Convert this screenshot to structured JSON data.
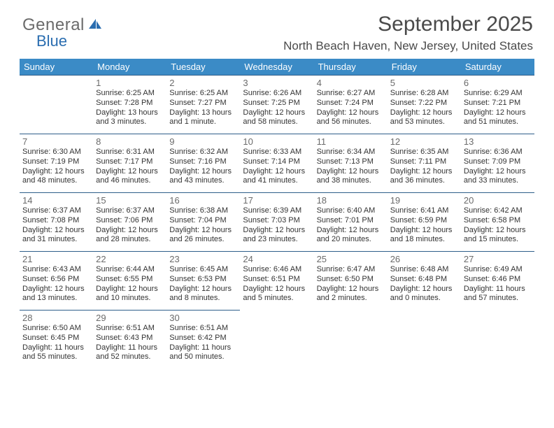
{
  "logo": {
    "text1": "General",
    "text2": "Blue"
  },
  "title": "September 2025",
  "subtitle": "North Beach Haven, New Jersey, United States",
  "colors": {
    "header_bg": "#3b8bc6",
    "header_text": "#ffffff",
    "row_border": "#2e5e8a",
    "logo_gray": "#6b6b6b",
    "logo_blue": "#2a6db0",
    "title_color": "#4a4a4a",
    "text_color": "#333333",
    "daynum_color": "#6b6b6b",
    "background": "#ffffff"
  },
  "fonts": {
    "title_size_pt": 22,
    "subtitle_size_pt": 13,
    "header_size_pt": 10,
    "cell_size_pt": 8.5,
    "daynum_size_pt": 10,
    "logo_size_pt": 18
  },
  "day_headers": [
    "Sunday",
    "Monday",
    "Tuesday",
    "Wednesday",
    "Thursday",
    "Friday",
    "Saturday"
  ],
  "weeks": [
    [
      {
        "day": "",
        "lines": []
      },
      {
        "day": "1",
        "lines": [
          "Sunrise: 6:25 AM",
          "Sunset: 7:28 PM",
          "Daylight: 13 hours and 3 minutes."
        ]
      },
      {
        "day": "2",
        "lines": [
          "Sunrise: 6:25 AM",
          "Sunset: 7:27 PM",
          "Daylight: 13 hours and 1 minute."
        ]
      },
      {
        "day": "3",
        "lines": [
          "Sunrise: 6:26 AM",
          "Sunset: 7:25 PM",
          "Daylight: 12 hours and 58 minutes."
        ]
      },
      {
        "day": "4",
        "lines": [
          "Sunrise: 6:27 AM",
          "Sunset: 7:24 PM",
          "Daylight: 12 hours and 56 minutes."
        ]
      },
      {
        "day": "5",
        "lines": [
          "Sunrise: 6:28 AM",
          "Sunset: 7:22 PM",
          "Daylight: 12 hours and 53 minutes."
        ]
      },
      {
        "day": "6",
        "lines": [
          "Sunrise: 6:29 AM",
          "Sunset: 7:21 PM",
          "Daylight: 12 hours and 51 minutes."
        ]
      }
    ],
    [
      {
        "day": "7",
        "lines": [
          "Sunrise: 6:30 AM",
          "Sunset: 7:19 PM",
          "Daylight: 12 hours and 48 minutes."
        ]
      },
      {
        "day": "8",
        "lines": [
          "Sunrise: 6:31 AM",
          "Sunset: 7:17 PM",
          "Daylight: 12 hours and 46 minutes."
        ]
      },
      {
        "day": "9",
        "lines": [
          "Sunrise: 6:32 AM",
          "Sunset: 7:16 PM",
          "Daylight: 12 hours and 43 minutes."
        ]
      },
      {
        "day": "10",
        "lines": [
          "Sunrise: 6:33 AM",
          "Sunset: 7:14 PM",
          "Daylight: 12 hours and 41 minutes."
        ]
      },
      {
        "day": "11",
        "lines": [
          "Sunrise: 6:34 AM",
          "Sunset: 7:13 PM",
          "Daylight: 12 hours and 38 minutes."
        ]
      },
      {
        "day": "12",
        "lines": [
          "Sunrise: 6:35 AM",
          "Sunset: 7:11 PM",
          "Daylight: 12 hours and 36 minutes."
        ]
      },
      {
        "day": "13",
        "lines": [
          "Sunrise: 6:36 AM",
          "Sunset: 7:09 PM",
          "Daylight: 12 hours and 33 minutes."
        ]
      }
    ],
    [
      {
        "day": "14",
        "lines": [
          "Sunrise: 6:37 AM",
          "Sunset: 7:08 PM",
          "Daylight: 12 hours and 31 minutes."
        ]
      },
      {
        "day": "15",
        "lines": [
          "Sunrise: 6:37 AM",
          "Sunset: 7:06 PM",
          "Daylight: 12 hours and 28 minutes."
        ]
      },
      {
        "day": "16",
        "lines": [
          "Sunrise: 6:38 AM",
          "Sunset: 7:04 PM",
          "Daylight: 12 hours and 26 minutes."
        ]
      },
      {
        "day": "17",
        "lines": [
          "Sunrise: 6:39 AM",
          "Sunset: 7:03 PM",
          "Daylight: 12 hours and 23 minutes."
        ]
      },
      {
        "day": "18",
        "lines": [
          "Sunrise: 6:40 AM",
          "Sunset: 7:01 PM",
          "Daylight: 12 hours and 20 minutes."
        ]
      },
      {
        "day": "19",
        "lines": [
          "Sunrise: 6:41 AM",
          "Sunset: 6:59 PM",
          "Daylight: 12 hours and 18 minutes."
        ]
      },
      {
        "day": "20",
        "lines": [
          "Sunrise: 6:42 AM",
          "Sunset: 6:58 PM",
          "Daylight: 12 hours and 15 minutes."
        ]
      }
    ],
    [
      {
        "day": "21",
        "lines": [
          "Sunrise: 6:43 AM",
          "Sunset: 6:56 PM",
          "Daylight: 12 hours and 13 minutes."
        ]
      },
      {
        "day": "22",
        "lines": [
          "Sunrise: 6:44 AM",
          "Sunset: 6:55 PM",
          "Daylight: 12 hours and 10 minutes."
        ]
      },
      {
        "day": "23",
        "lines": [
          "Sunrise: 6:45 AM",
          "Sunset: 6:53 PM",
          "Daylight: 12 hours and 8 minutes."
        ]
      },
      {
        "day": "24",
        "lines": [
          "Sunrise: 6:46 AM",
          "Sunset: 6:51 PM",
          "Daylight: 12 hours and 5 minutes."
        ]
      },
      {
        "day": "25",
        "lines": [
          "Sunrise: 6:47 AM",
          "Sunset: 6:50 PM",
          "Daylight: 12 hours and 2 minutes."
        ]
      },
      {
        "day": "26",
        "lines": [
          "Sunrise: 6:48 AM",
          "Sunset: 6:48 PM",
          "Daylight: 12 hours and 0 minutes."
        ]
      },
      {
        "day": "27",
        "lines": [
          "Sunrise: 6:49 AM",
          "Sunset: 6:46 PM",
          "Daylight: 11 hours and 57 minutes."
        ]
      }
    ],
    [
      {
        "day": "28",
        "lines": [
          "Sunrise: 6:50 AM",
          "Sunset: 6:45 PM",
          "Daylight: 11 hours and 55 minutes."
        ]
      },
      {
        "day": "29",
        "lines": [
          "Sunrise: 6:51 AM",
          "Sunset: 6:43 PM",
          "Daylight: 11 hours and 52 minutes."
        ]
      },
      {
        "day": "30",
        "lines": [
          "Sunrise: 6:51 AM",
          "Sunset: 6:42 PM",
          "Daylight: 11 hours and 50 minutes."
        ]
      },
      {
        "day": "",
        "lines": []
      },
      {
        "day": "",
        "lines": []
      },
      {
        "day": "",
        "lines": []
      },
      {
        "day": "",
        "lines": []
      }
    ]
  ]
}
